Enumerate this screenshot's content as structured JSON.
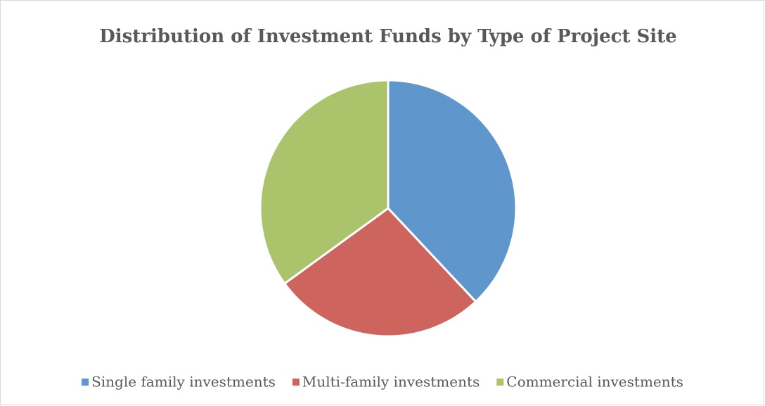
{
  "chart_data": {
    "type": "pie",
    "title": "Distribution of Investment Funds by Type of Project Site",
    "categories": [
      "Single family investments",
      "Multi-family investments",
      "Commercial investments"
    ],
    "values": [
      38,
      27,
      35
    ],
    "colors": [
      "#5f96cb",
      "#cd645d",
      "#abc46c"
    ],
    "legend": "bottom"
  }
}
